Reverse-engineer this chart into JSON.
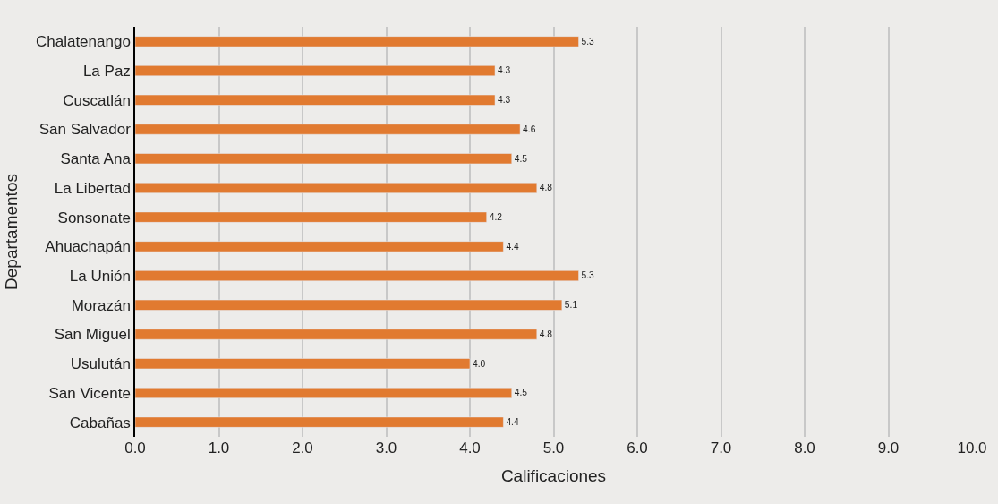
{
  "chart_data": {
    "type": "bar",
    "orientation": "horizontal",
    "xlabel": "Calificaciones",
    "ylabel": "Departamentos",
    "categories": [
      "Chalatenango",
      "La Paz",
      "Cuscatlán",
      "San Salvador",
      "Santa Ana",
      "La Libertad",
      "Sonsonate",
      "Ahuachapán",
      "La Unión",
      "Morazán",
      "San Miguel",
      "Usulután",
      "San Vicente",
      "Cabañas"
    ],
    "values": [
      5.3,
      4.3,
      4.3,
      4.6,
      4.5,
      4.8,
      4.2,
      4.4,
      5.3,
      5.1,
      4.8,
      4.0,
      4.5,
      4.4
    ],
    "value_labels": [
      "5.3",
      "4.3",
      "4.3",
      "4.6",
      "4.5",
      "4.8",
      "4.2",
      "4.4",
      "5.3",
      "5.1",
      "4.8",
      "4.0",
      "4.5",
      "4.4"
    ],
    "color": "#e17a30",
    "xlim": [
      0,
      10
    ],
    "xticks": [
      {
        "value": 0,
        "label": "0.0"
      },
      {
        "value": 1,
        "label": "1.0"
      },
      {
        "value": 2,
        "label": "2.0"
      },
      {
        "value": 3,
        "label": "3.0"
      },
      {
        "value": 4,
        "label": "4.0"
      },
      {
        "value": 5,
        "label": "5.0"
      },
      {
        "value": 6,
        "label": "6.0"
      },
      {
        "value": 7,
        "label": "7.0"
      },
      {
        "value": 8,
        "label": "8.0"
      },
      {
        "value": 9,
        "label": "9.0"
      },
      {
        "value": 10,
        "label": "10.0"
      }
    ],
    "grid": "x",
    "legend": false
  }
}
